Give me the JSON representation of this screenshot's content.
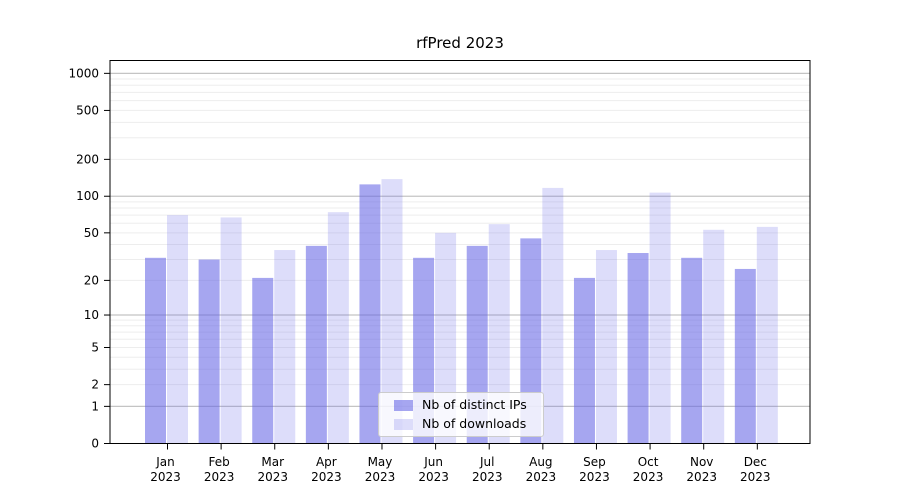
{
  "title": "rfPred 2023",
  "chart_data": {
    "type": "bar",
    "title": "rfPred 2023",
    "year": "2023",
    "months": [
      "Jan",
      "Feb",
      "Mar",
      "Apr",
      "May",
      "Jun",
      "Jul",
      "Aug",
      "Sep",
      "Oct",
      "Nov",
      "Dec"
    ],
    "categories": [
      "Jan 2023",
      "Feb 2023",
      "Mar 2023",
      "Apr 2023",
      "May 2023",
      "Jun 2023",
      "Jul 2023",
      "Aug 2023",
      "Sep 2023",
      "Oct 2023",
      "Nov 2023",
      "Dec 2023"
    ],
    "series": [
      {
        "name": "Nb of distinct IPs",
        "values": [
          31,
          30,
          21,
          39,
          125,
          31,
          39,
          45,
          21,
          34,
          31,
          25
        ],
        "color": "#6666E6",
        "opacity": 0.58
      },
      {
        "name": "Nb of downloads",
        "values": [
          70,
          67,
          36,
          74,
          138,
          50,
          59,
          117,
          36,
          107,
          53,
          56
        ],
        "color": "#6666E6",
        "opacity": 0.22
      }
    ],
    "xlabel": "",
    "ylabel": "",
    "y_scale": "log10(1+x)",
    "y_ticks": [
      0,
      1,
      2,
      5,
      10,
      20,
      50,
      100,
      200,
      500,
      1000
    ],
    "ylim": [
      0,
      1000
    ],
    "grid": true,
    "major_gridlines": [
      1,
      10,
      100,
      1000
    ],
    "legend_position": "bottom-center"
  },
  "colors": {
    "background": "#ffffff",
    "frame": "#000000",
    "major_grid": "#c4c4c4",
    "minor_grid": "#ededed",
    "tick_text": "#000000",
    "legend_border": "#cccccc",
    "legend_bg": "rgba(255,255,255,0.8)"
  }
}
